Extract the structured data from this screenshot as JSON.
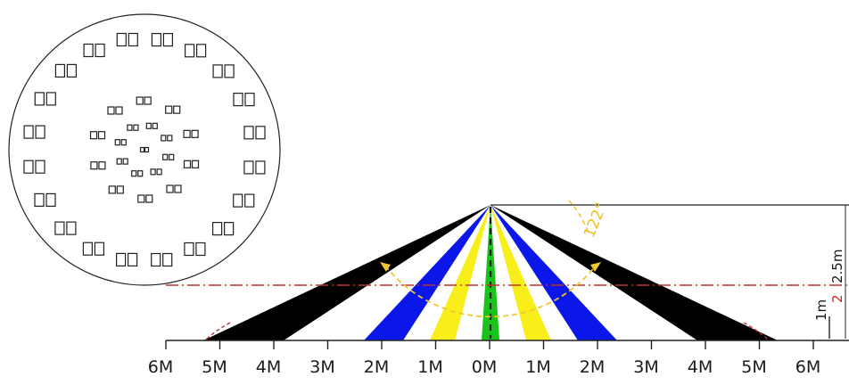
{
  "lens_view": {
    "rings": [
      {
        "name": "outer-ring",
        "count": 20
      },
      {
        "name": "middle-ring",
        "count": 10
      },
      {
        "name": "inner-ring",
        "count": 8
      },
      {
        "name": "center",
        "count": 1
      }
    ]
  },
  "detection_zone": {
    "angle_label": "122°",
    "height_label": "2.5m",
    "red_label": "2",
    "height_mark_label": "1m",
    "beam_colors": {
      "outer": "#000000",
      "second": "#0a17e8",
      "third": "#f7ee1a",
      "center": "#18c418",
      "guide_red": "#c0322e",
      "angle_arc": "#f2c630"
    },
    "axis_ticks": [
      "6M",
      "5M",
      "4M",
      "3M",
      "2M",
      "1M",
      "0M",
      "1M",
      "2M",
      "3M",
      "4M",
      "5M",
      "6M"
    ]
  }
}
